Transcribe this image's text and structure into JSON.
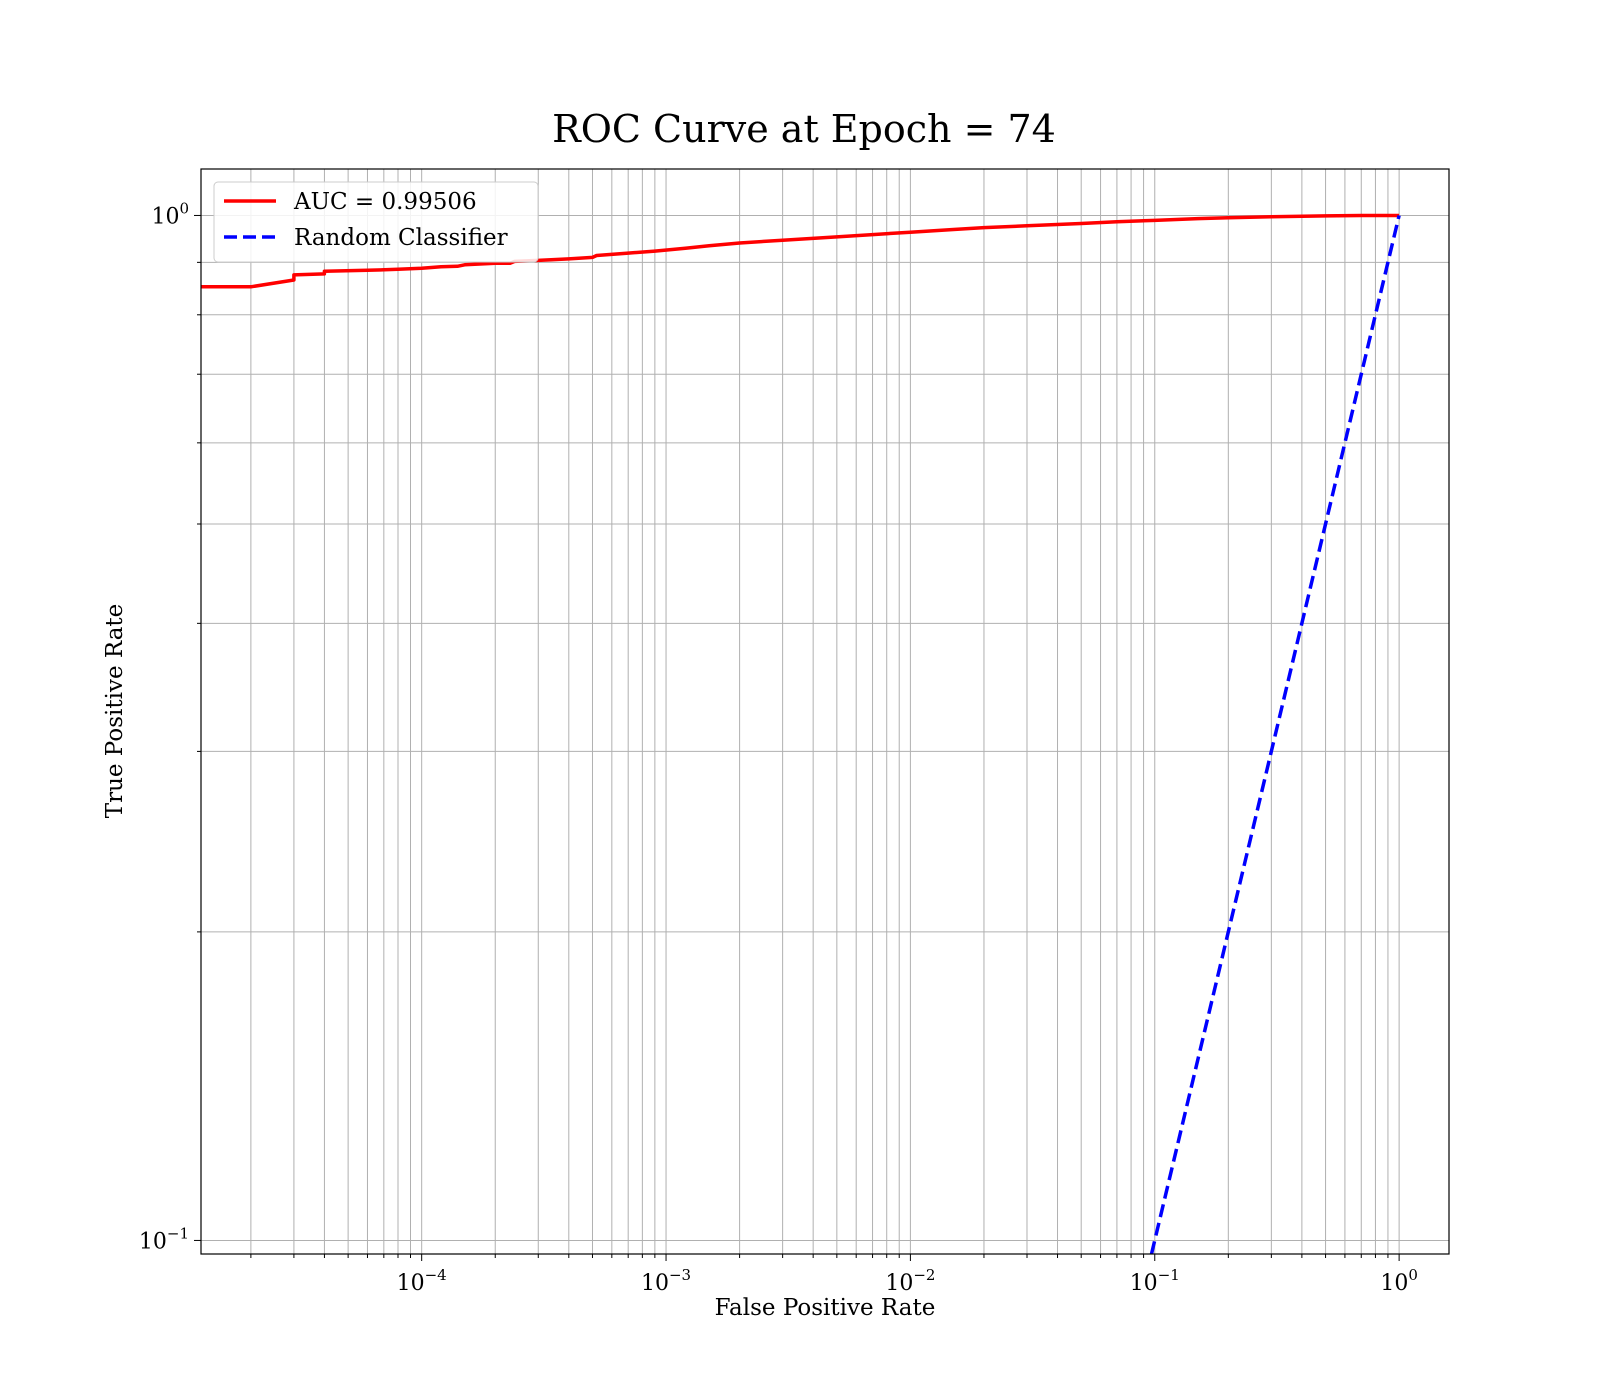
{
  "chart_data": {
    "type": "line",
    "title": "ROC Curve at Epoch = 74",
    "xlabel": "False Positive Rate",
    "ylabel": "True Positive Rate",
    "xscale": "log",
    "yscale": "log",
    "xlim": [
      1.25e-05,
      1.6
    ],
    "ylim": [
      0.097,
      1.11
    ],
    "grid": true,
    "legend": "upper left",
    "x_ticks": [
      {
        "value": 0.0001,
        "base": "10",
        "exp": "−4"
      },
      {
        "value": 0.001,
        "base": "10",
        "exp": "−3"
      },
      {
        "value": 0.01,
        "base": "10",
        "exp": "−2"
      },
      {
        "value": 0.1,
        "base": "10",
        "exp": "−1"
      },
      {
        "value": 1,
        "base": "10",
        "exp": "0"
      }
    ],
    "y_ticks": [
      {
        "value": 0.1,
        "base": "10",
        "exp": "−1"
      },
      {
        "value": 1,
        "base": "10",
        "exp": "0"
      }
    ],
    "series": [
      {
        "name": "AUC = 0.99506",
        "color": "#ff0000",
        "style": "solid",
        "x": [
          1.25e-05,
          2e-05,
          3e-05,
          3e-05,
          4e-05,
          4e-05,
          6e-05,
          8e-05,
          0.0001,
          0.00012,
          0.00014,
          0.00015,
          0.0002,
          0.00023,
          0.00024,
          0.0003,
          0.0004,
          0.0005,
          0.00052,
          0.0007,
          0.0009,
          0.0012,
          0.0015,
          0.002,
          0.003,
          0.005,
          0.007,
          0.01,
          0.015,
          0.02,
          0.03,
          0.05,
          0.07,
          0.1,
          0.15,
          0.2,
          0.3,
          0.5,
          0.7,
          1.0
        ],
        "y": [
          0.852,
          0.852,
          0.865,
          0.875,
          0.877,
          0.882,
          0.884,
          0.886,
          0.888,
          0.891,
          0.892,
          0.895,
          0.898,
          0.898,
          0.902,
          0.904,
          0.907,
          0.91,
          0.914,
          0.919,
          0.923,
          0.929,
          0.934,
          0.94,
          0.946,
          0.953,
          0.958,
          0.963,
          0.969,
          0.973,
          0.977,
          0.982,
          0.986,
          0.989,
          0.993,
          0.995,
          0.997,
          0.999,
          1.0,
          1.0
        ]
      },
      {
        "name": "Random Classifier",
        "color": "#0000ff",
        "style": "dashed",
        "x": [
          0.097,
          1.0
        ],
        "y": [
          0.097,
          1.0
        ]
      }
    ]
  }
}
